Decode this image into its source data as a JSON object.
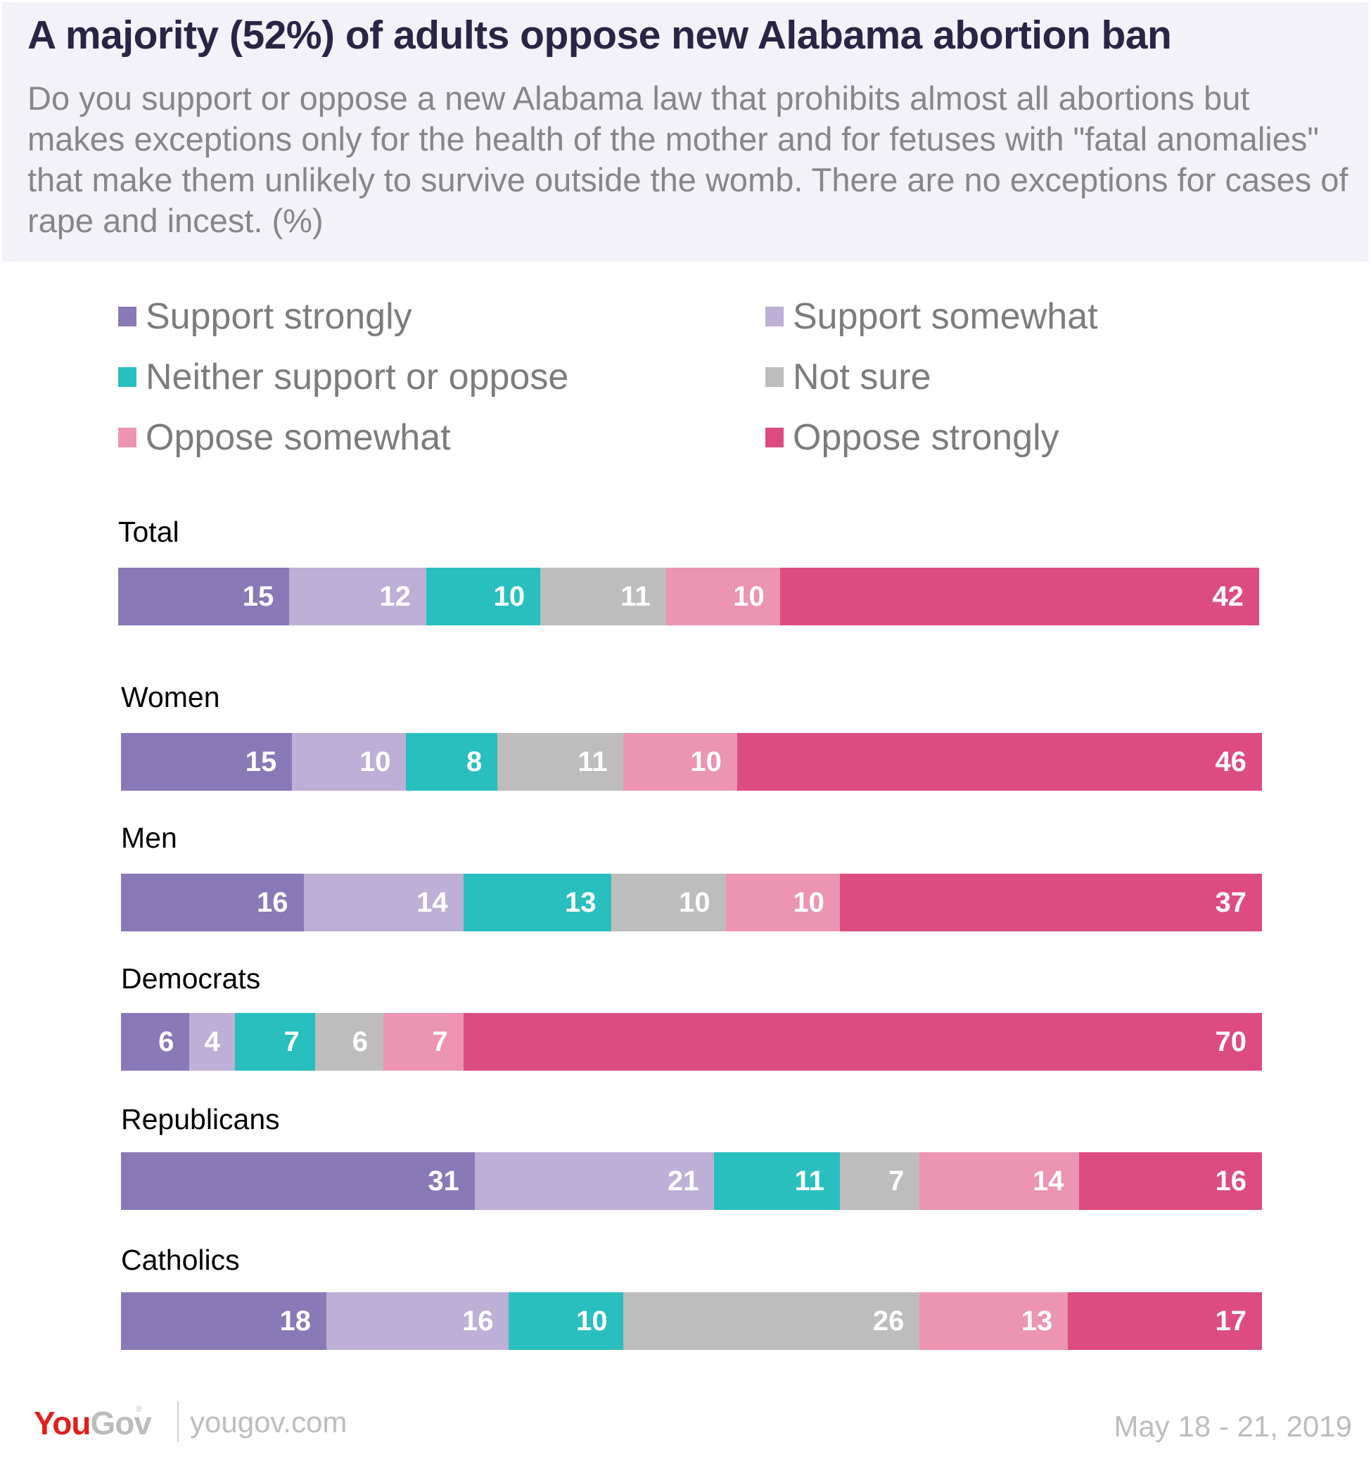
{
  "header": {
    "title": "A majority (52%) of adults oppose new Alabama abortion ban",
    "subtitle": "Do you support or oppose a new Alabama law that prohibits almost all abortions but makes exceptions only for the health of the mother and for fetuses with \"fatal anomalies\" that make them unlikely to survive outside the womb. There are no exceptions for cases of rape and incest. (%)"
  },
  "legend": [
    {
      "label": "Support strongly",
      "color": "#8979b6"
    },
    {
      "label": "Support somewhat",
      "color": "#bdafd5"
    },
    {
      "label": "Neither support or oppose",
      "color": "#29bfbe"
    },
    {
      "label": "Not sure",
      "color": "#bdbdbd"
    },
    {
      "label": "Oppose somewhat",
      "color": "#ec94b2"
    },
    {
      "label": "Oppose strongly",
      "color": "#dd4c81"
    }
  ],
  "chart_data": {
    "type": "bar",
    "orientation": "horizontal",
    "stacked": true,
    "title": "A majority (52%) of adults oppose new Alabama abortion ban",
    "xlabel": "",
    "ylabel": "",
    "unit": "%",
    "xlim": [
      0,
      100
    ],
    "grid": false,
    "legend_position": "top",
    "categories": [
      "Total",
      "Women",
      "Men",
      "Democrats",
      "Republicans",
      "Catholics"
    ],
    "series": [
      {
        "name": "Support strongly",
        "color": "#8979b6",
        "values": [
          15,
          15,
          16,
          6,
          31,
          18
        ]
      },
      {
        "name": "Support somewhat",
        "color": "#bdafd5",
        "values": [
          12,
          10,
          14,
          4,
          21,
          16
        ]
      },
      {
        "name": "Neither support or oppose",
        "color": "#29bfbe",
        "values": [
          10,
          8,
          13,
          7,
          11,
          10
        ]
      },
      {
        "name": "Not sure",
        "color": "#bdbdbd",
        "values": [
          11,
          11,
          10,
          6,
          7,
          26
        ]
      },
      {
        "name": "Oppose somewhat",
        "color": "#ec94b2",
        "values": [
          10,
          10,
          10,
          7,
          14,
          13
        ]
      },
      {
        "name": "Oppose strongly",
        "color": "#dd4c81",
        "values": [
          42,
          46,
          37,
          70,
          16,
          17
        ]
      }
    ]
  },
  "footer": {
    "logo_you": "You",
    "logo_gov": "Gov",
    "logo_reg": "®",
    "site": "yougov.com",
    "date": "May 18 - 21, 2019"
  }
}
